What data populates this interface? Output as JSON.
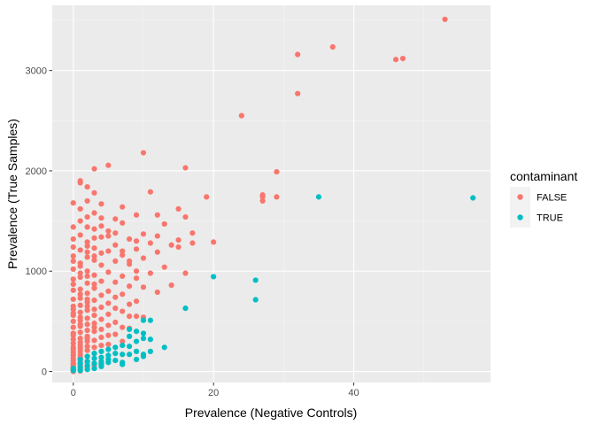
{
  "chart_data": {
    "type": "scatter",
    "title": "",
    "xlabel": "Prevalence (Negative Controls)",
    "ylabel": "Prevalence (True Samples)",
    "xlim": [
      -3,
      59.5
    ],
    "ylim": [
      -110,
      3650
    ],
    "x_ticks": [
      0,
      20,
      40
    ],
    "y_ticks": [
      0,
      1000,
      2000,
      3000
    ],
    "grid": true,
    "legend": {
      "title": "contaminant",
      "placement": "right"
    },
    "series": [
      {
        "name": "FALSE",
        "color": "#F8766D",
        "points": [
          [
            53,
            3510
          ],
          [
            37,
            3235
          ],
          [
            32,
            3160
          ],
          [
            47,
            3120
          ],
          [
            46,
            3110
          ],
          [
            32,
            2770
          ],
          [
            24,
            2550
          ],
          [
            10,
            2180
          ],
          [
            5,
            2055
          ],
          [
            3,
            2020
          ],
          [
            16,
            2030
          ],
          [
            29,
            1990
          ],
          [
            1,
            1900
          ],
          [
            1,
            1880
          ],
          [
            2,
            1840
          ],
          [
            3,
            1780
          ],
          [
            11,
            1790
          ],
          [
            27,
            1760
          ],
          [
            27,
            1740
          ],
          [
            29,
            1740
          ],
          [
            19,
            1740
          ],
          [
            27,
            1700
          ],
          [
            0,
            1680
          ],
          [
            4,
            1670
          ],
          [
            7,
            1640
          ],
          [
            15,
            1620
          ],
          [
            9,
            1560
          ],
          [
            12,
            1560
          ],
          [
            2,
            1540
          ],
          [
            16,
            1540
          ],
          [
            4,
            1530
          ],
          [
            1,
            1500
          ],
          [
            7,
            1480
          ],
          [
            13,
            1470
          ],
          [
            0,
            1440
          ],
          [
            2,
            1440
          ],
          [
            3,
            1420
          ],
          [
            5,
            1400
          ],
          [
            6,
            1380
          ],
          [
            17,
            1380
          ],
          [
            10,
            1370
          ],
          [
            12,
            1350
          ],
          [
            4,
            1340
          ],
          [
            8,
            1320
          ],
          [
            15,
            1310
          ],
          [
            20,
            1290
          ],
          [
            9,
            1300
          ],
          [
            11,
            1280
          ],
          [
            17,
            1280
          ],
          [
            6,
            1260
          ],
          [
            2,
            1250
          ],
          [
            0,
            1240
          ],
          [
            14,
            1260
          ],
          [
            15,
            1240
          ],
          [
            3,
            1230
          ],
          [
            9,
            1220
          ],
          [
            1,
            1210
          ],
          [
            5,
            1200
          ],
          [
            12,
            1190
          ],
          [
            4,
            1180
          ],
          [
            7,
            1160
          ],
          [
            0,
            1150
          ],
          [
            2,
            1140
          ],
          [
            10,
            1130
          ],
          [
            3,
            1110
          ],
          [
            6,
            1100
          ],
          [
            1,
            1080
          ],
          [
            8,
            1070
          ],
          [
            4,
            1060
          ],
          [
            13,
            1040
          ],
          [
            0,
            1020
          ],
          [
            2,
            1000
          ],
          [
            5,
            990
          ],
          [
            11,
            980
          ],
          [
            16,
            980
          ],
          [
            3,
            960
          ],
          [
            7,
            950
          ],
          [
            1,
            940
          ],
          [
            9,
            930
          ],
          [
            0,
            920
          ],
          [
            4,
            900
          ],
          [
            6,
            890
          ],
          [
            2,
            880
          ],
          [
            14,
            860
          ],
          [
            8,
            850
          ],
          [
            10,
            840
          ],
          [
            3,
            830
          ],
          [
            1,
            820
          ],
          [
            0,
            810
          ],
          [
            5,
            800
          ],
          [
            12,
            790
          ],
          [
            2,
            780
          ],
          [
            7,
            770
          ],
          [
            4,
            760
          ],
          [
            6,
            740
          ],
          [
            1,
            730
          ],
          [
            0,
            720
          ],
          [
            3,
            710
          ],
          [
            9,
            700
          ],
          [
            2,
            690
          ],
          [
            5,
            680
          ],
          [
            8,
            670
          ],
          [
            1,
            660
          ],
          [
            0,
            650
          ],
          [
            4,
            640
          ],
          [
            6,
            630
          ],
          [
            3,
            620
          ],
          [
            2,
            610
          ],
          [
            7,
            600
          ],
          [
            1,
            590
          ],
          [
            0,
            580
          ],
          [
            5,
            570
          ],
          [
            3,
            560
          ],
          [
            8,
            550
          ],
          [
            9,
            550
          ],
          [
            10,
            540
          ],
          [
            2,
            530
          ],
          [
            4,
            520
          ],
          [
            1,
            510
          ],
          [
            0,
            500
          ],
          [
            6,
            490
          ],
          [
            3,
            480
          ],
          [
            2,
            470
          ],
          [
            5,
            460
          ],
          [
            1,
            450
          ],
          [
            0,
            440
          ],
          [
            7,
            440
          ],
          [
            8,
            430
          ],
          [
            4,
            420
          ],
          [
            2,
            410
          ],
          [
            3,
            400
          ],
          [
            1,
            390
          ],
          [
            0,
            380
          ],
          [
            6,
            370
          ],
          [
            5,
            360
          ],
          [
            2,
            350
          ],
          [
            4,
            340
          ],
          [
            1,
            330
          ],
          [
            0,
            320
          ],
          [
            3,
            310
          ],
          [
            2,
            300
          ],
          [
            7,
            300
          ],
          [
            1,
            290
          ],
          [
            0,
            280
          ],
          [
            5,
            270
          ],
          [
            4,
            260
          ],
          [
            2,
            250
          ],
          [
            3,
            240
          ],
          [
            1,
            230
          ],
          [
            0,
            220
          ],
          [
            2,
            210
          ],
          [
            1,
            200
          ],
          [
            0,
            190
          ],
          [
            3,
            180
          ],
          [
            1,
            170
          ],
          [
            0,
            160
          ],
          [
            2,
            150
          ],
          [
            1,
            140
          ],
          [
            0,
            130
          ],
          [
            1,
            120
          ],
          [
            0,
            110
          ],
          [
            2,
            100
          ],
          [
            1,
            90
          ],
          [
            0,
            80
          ],
          [
            0,
            70
          ],
          [
            1,
            60
          ],
          [
            0,
            50
          ],
          [
            0,
            40
          ],
          [
            1,
            30
          ],
          [
            0,
            20
          ],
          [
            0,
            10
          ],
          [
            0,
            0
          ],
          [
            1,
            5
          ],
          [
            2,
            40
          ],
          [
            3,
            60
          ],
          [
            4,
            80
          ],
          [
            1,
            1620
          ],
          [
            2,
            1700
          ],
          [
            3,
            1580
          ],
          [
            4,
            1450
          ],
          [
            5,
            1350
          ],
          [
            6,
            1520
          ],
          [
            7,
            1200
          ],
          [
            8,
            1100
          ],
          [
            9,
            1000
          ],
          [
            0,
            1320
          ],
          [
            1,
            1360
          ],
          [
            2,
            1290
          ],
          [
            3,
            1150
          ],
          [
            1,
            1050
          ],
          [
            2,
            950
          ],
          [
            0,
            870
          ],
          [
            1,
            770
          ],
          [
            2,
            650
          ],
          [
            0,
            560
          ],
          [
            1,
            470
          ],
          [
            0,
            360
          ],
          [
            1,
            260
          ],
          [
            0,
            240
          ],
          [
            2,
            330
          ],
          [
            3,
            440
          ],
          [
            1,
            540
          ],
          [
            0,
            620
          ],
          [
            2,
            720
          ],
          [
            3,
            870
          ],
          [
            1,
            980
          ],
          [
            0,
            1100
          ],
          [
            2,
            1190
          ],
          [
            3,
            1330
          ]
        ]
      },
      {
        "name": "TRUE",
        "color": "#00BFC4",
        "points": [
          [
            57,
            1730
          ],
          [
            35,
            1740
          ],
          [
            20,
            945
          ],
          [
            26,
            910
          ],
          [
            26,
            715
          ],
          [
            16,
            630
          ],
          [
            10,
            510
          ],
          [
            11,
            510
          ],
          [
            8,
            420
          ],
          [
            9,
            400
          ],
          [
            10,
            380
          ],
          [
            8,
            350
          ],
          [
            9,
            300
          ],
          [
            10,
            330
          ],
          [
            11,
            320
          ],
          [
            13,
            240
          ],
          [
            7,
            260
          ],
          [
            8,
            250
          ],
          [
            9,
            200
          ],
          [
            10,
            170
          ],
          [
            10,
            150
          ],
          [
            11,
            200
          ],
          [
            6,
            240
          ],
          [
            7,
            170
          ],
          [
            5,
            220
          ],
          [
            5,
            160
          ],
          [
            5,
            120
          ],
          [
            4,
            200
          ],
          [
            4,
            140
          ],
          [
            4,
            100
          ],
          [
            3,
            180
          ],
          [
            3,
            130
          ],
          [
            3,
            80
          ],
          [
            2,
            150
          ],
          [
            2,
            100
          ],
          [
            2,
            60
          ],
          [
            1,
            120
          ],
          [
            1,
            80
          ],
          [
            1,
            40
          ],
          [
            0,
            30
          ],
          [
            0,
            10
          ],
          [
            6,
            180
          ],
          [
            7,
            90
          ],
          [
            7,
            70
          ],
          [
            9,
            120
          ],
          [
            8,
            170
          ],
          [
            2,
            20
          ],
          [
            3,
            30
          ],
          [
            4,
            50
          ],
          [
            5,
            90
          ],
          [
            1,
            10
          ],
          [
            6,
            110
          ],
          [
            4,
            70
          ]
        ]
      }
    ]
  }
}
